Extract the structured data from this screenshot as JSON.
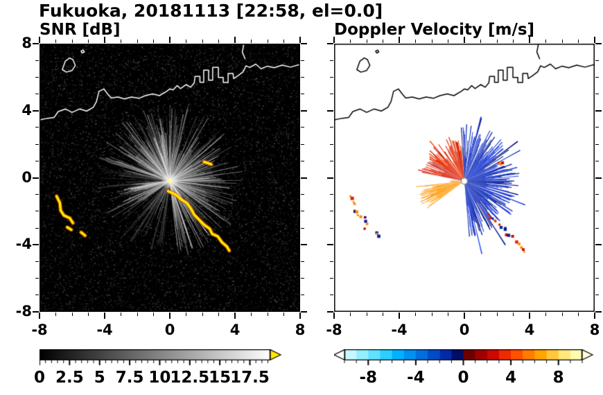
{
  "title": "Fukuoka, 20181113 [22:58, el=0.0]",
  "chart_data": [
    {
      "type": "heatmap",
      "id": "snr",
      "title": "SNR [dB]",
      "units": "dB",
      "xlim": [
        -8,
        8
      ],
      "ylim": [
        -8,
        8
      ],
      "xtick_values": [
        -8,
        -4,
        0,
        4,
        8
      ],
      "xtick_labels": [
        "-8",
        "-4",
        "0",
        "4",
        "8"
      ],
      "ytick_values": [
        -8,
        -4,
        0,
        4,
        8
      ],
      "ytick_labels": [
        "-8",
        "-4",
        "0",
        "4",
        "8"
      ],
      "minor_tick_step": 1,
      "grid": false,
      "background": "#000000",
      "coast_color": "#ffffff",
      "colorbar": {
        "min": 0,
        "max": 19.2,
        "minor_step": 0.5,
        "label_values": [
          0,
          2.5,
          5,
          7.5,
          10,
          12.5,
          15,
          17.5
        ],
        "labels": [
          "0",
          "2.5",
          "5",
          "7.5",
          "10",
          "12.5",
          "15",
          "17.5"
        ],
        "gradient": [
          "#000000",
          "#ffffff"
        ],
        "over_arrow": "#ffe800"
      },
      "render": {
        "center": [
          0,
          -0.2
        ],
        "seed_noise": 101,
        "noise_count": 9000,
        "seed_rays": 77,
        "wedges": [
          {
            "a0": 96,
            "a1": 126,
            "r": 3.0,
            "alpha": 0.33
          },
          {
            "a0": 128,
            "a1": 164,
            "r": 2.6,
            "alpha": 0.26
          },
          {
            "a0": 186,
            "a1": 214,
            "r": 2.9,
            "alpha": 0.3
          },
          {
            "a0": -84,
            "a1": -40,
            "r": 2.7,
            "alpha": 0.22
          },
          {
            "a0": -40,
            "a1": 20,
            "r": 3.3,
            "alpha": 0.24
          },
          {
            "a0": 20,
            "a1": 60,
            "r": 2.8,
            "alpha": 0.22
          },
          {
            "a0": 60,
            "a1": 92,
            "r": 2.3,
            "alpha": 0.18
          }
        ],
        "ray_count": 240,
        "ray_len": [
          0.8,
          4.6
        ],
        "bright_rays": [
          {
            "a0": 95,
            "a1": 170,
            "count": 70,
            "len": [
              1.5,
              4.6
            ]
          },
          {
            "a0": -85,
            "a1": 93,
            "count": 100,
            "len": [
              1.5,
              4.6
            ]
          },
          {
            "a0": 185,
            "a1": 215,
            "count": 28,
            "len": [
              1.5,
              3.2
            ]
          }
        ],
        "glow_radius_px": 13,
        "yellow": "#ffe800",
        "yellow_fringe": "#cc4400",
        "center_dot_color": "#fff8aa",
        "yellow_paths": [
          [
            [
              -6.95,
              -1.1
            ],
            [
              -6.75,
              -1.5
            ],
            [
              -6.7,
              -1.95
            ],
            [
              -6.5,
              -2.25
            ],
            [
              -6.15,
              -2.4
            ],
            [
              -5.95,
              -2.7
            ]
          ],
          [
            [
              -6.3,
              -2.95
            ],
            [
              -6.05,
              -3.1
            ]
          ],
          [
            [
              -5.45,
              -3.25
            ],
            [
              -5.2,
              -3.45
            ]
          ],
          [
            [
              -0.1,
              -0.8
            ],
            [
              0.35,
              -1.0
            ],
            [
              0.7,
              -1.3
            ],
            [
              1.05,
              -1.5
            ],
            [
              1.3,
              -1.85
            ],
            [
              1.5,
              -2.2
            ],
            [
              1.8,
              -2.5
            ],
            [
              2.1,
              -2.8
            ],
            [
              2.45,
              -3.05
            ],
            [
              2.6,
              -3.35
            ],
            [
              2.95,
              -3.5
            ],
            [
              3.2,
              -3.85
            ],
            [
              3.5,
              -4.1
            ],
            [
              3.65,
              -4.35
            ]
          ],
          [
            [
              2.1,
              0.95
            ],
            [
              2.55,
              0.8
            ]
          ]
        ]
      }
    },
    {
      "type": "heatmap",
      "id": "doppler",
      "title": "Doppler Velocity [m/s]",
      "units": "m/s",
      "xlim": [
        -8,
        8
      ],
      "ylim": [
        -8,
        8
      ],
      "xtick_values": [
        -8,
        -4,
        0,
        4,
        8
      ],
      "xtick_labels": [
        "-8",
        "-4",
        "0",
        "4",
        "8"
      ],
      "ytick_values": [
        -8,
        -4,
        0,
        4,
        8
      ],
      "ytick_labels": [
        "-8",
        "-4",
        "0",
        "4",
        "8"
      ],
      "minor_tick_step": 1,
      "grid": false,
      "background": "#ffffff",
      "coast_color": "#000000",
      "colorbar": {
        "min": -10,
        "max": 10,
        "minor_step": 1,
        "label_values": [
          -8,
          -4,
          0,
          4,
          8
        ],
        "labels": [
          "-8",
          "-4",
          "0",
          "4",
          "8"
        ],
        "stops": [
          "#c8f8ff",
          "#94efff",
          "#60e2ff",
          "#2cceff",
          "#00b2ff",
          "#0090f0",
          "#006ede",
          "#004cc6",
          "#002ca8",
          "#000e66",
          "#700000",
          "#a00000",
          "#cc0800",
          "#ee2a00",
          "#ff5000",
          "#ff7c00",
          "#ffa400",
          "#ffc83c",
          "#ffe87c",
          "#fffbb0"
        ],
        "under_arrow": "#ffffff",
        "over_arrow": "#ffffdd"
      },
      "render": {
        "center": [
          0,
          -0.2
        ],
        "seed": 202,
        "sectors": [
          {
            "a0": -85,
            "a1": 93,
            "step": 0.7,
            "len": [
              1.3,
              3.4
            ],
            "gap": 0.1,
            "spike": 0.07,
            "spike_len": 1.0,
            "colors": [
              "#0a1a99",
              "#1133cc",
              "#2244ee",
              "#0022aa",
              "#3355ff",
              "#001177",
              "#0d2bb5",
              "#1b3de0"
            ]
          },
          {
            "a0": 95,
            "a1": 168,
            "step": 0.8,
            "len": [
              1.1,
              2.8
            ],
            "gap": 0.12,
            "spike": 0.05,
            "spike_len": 0.7,
            "colors": [
              "#cc1100",
              "#ee2200",
              "#ff3300",
              "#aa0000",
              "#ff5500",
              "#dd2b00"
            ]
          },
          {
            "a0": 170,
            "a1": 184,
            "step": 1.2,
            "len": [
              0.3,
              1.0
            ],
            "gap": 0.5,
            "spike": 0,
            "spike_len": 0,
            "colors": [
              "#ff7700",
              "#ee4400"
            ]
          },
          {
            "a0": 186,
            "a1": 215,
            "step": 0.7,
            "len": [
              1.7,
              3.0
            ],
            "gap": 0.06,
            "spike": 0.04,
            "spike_len": 0.5,
            "colors": [
              "#ff9900",
              "#ffa41e",
              "#ff8c00",
              "#ffb133",
              "#ff9d11"
            ]
          }
        ],
        "center_circle": {
          "fill": "#ffffff",
          "stroke": "#888888",
          "radius_px": 4.5
        },
        "speck_colors": [
          "#001177",
          "#cc1100",
          "#ff8800",
          "#0a1a99",
          "#dd2200",
          "#002299"
        ],
        "speck_paths": [
          [
            [
              -6.95,
              -1.1
            ],
            [
              -6.75,
              -1.5
            ],
            [
              -6.7,
              -1.95
            ],
            [
              -6.5,
              -2.25
            ],
            [
              -6.15,
              -2.4
            ],
            [
              -5.95,
              -2.7
            ]
          ],
          [
            [
              -6.3,
              -2.95
            ],
            [
              -6.05,
              -3.1
            ]
          ],
          [
            [
              -5.45,
              -3.25
            ],
            [
              -5.2,
              -3.45
            ]
          ],
          [
            [
              1.5,
              -2.2
            ],
            [
              1.8,
              -2.5
            ],
            [
              2.1,
              -2.8
            ],
            [
              2.45,
              -3.05
            ],
            [
              2.6,
              -3.35
            ],
            [
              2.95,
              -3.5
            ],
            [
              3.2,
              -3.85
            ],
            [
              3.5,
              -4.1
            ],
            [
              3.65,
              -4.35
            ]
          ],
          [
            [
              2.1,
              0.95
            ],
            [
              2.55,
              0.8
            ]
          ]
        ]
      }
    }
  ],
  "coastline": {
    "lines": [
      [
        [
          -8,
          3.45
        ],
        [
          -7.5,
          3.55
        ],
        [
          -7.1,
          3.6
        ],
        [
          -6.85,
          3.95
        ],
        [
          -6.4,
          4.1
        ],
        [
          -6.0,
          3.9
        ],
        [
          -5.55,
          4.1
        ],
        [
          -5.1,
          3.98
        ],
        [
          -4.7,
          4.2
        ],
        [
          -4.5,
          4.55
        ],
        [
          -4.35,
          5.15
        ],
        [
          -4.05,
          5.3
        ],
        [
          -3.82,
          5.0
        ],
        [
          -3.6,
          4.75
        ],
        [
          -3.2,
          4.82
        ],
        [
          -2.78,
          4.7
        ],
        [
          -2.35,
          4.82
        ],
        [
          -1.9,
          4.74
        ],
        [
          -1.5,
          4.9
        ],
        [
          -1.05,
          5.0
        ],
        [
          -0.64,
          4.9
        ],
        [
          -0.2,
          5.15
        ],
        [
          0.0,
          5.3
        ],
        [
          0.2,
          5.24
        ],
        [
          0.45,
          5.5
        ],
        [
          0.65,
          5.32
        ],
        [
          1.0,
          5.56
        ],
        [
          1.28,
          5.4
        ],
        [
          1.5,
          5.66
        ],
        [
          1.55,
          6.05
        ],
        [
          1.85,
          6.05
        ],
        [
          1.85,
          5.7
        ],
        [
          2.08,
          5.7
        ],
        [
          2.08,
          6.42
        ],
        [
          2.38,
          6.42
        ],
        [
          2.38,
          5.82
        ],
        [
          2.63,
          5.82
        ],
        [
          2.63,
          6.58
        ],
        [
          2.98,
          6.58
        ],
        [
          2.98,
          5.98
        ],
        [
          3.28,
          5.98
        ],
        [
          3.28,
          5.68
        ],
        [
          3.58,
          5.68
        ],
        [
          3.58,
          6.22
        ],
        [
          3.88,
          6.22
        ],
        [
          3.92,
          5.92
        ],
        [
          4.18,
          6.08
        ],
        [
          4.5,
          6.32
        ],
        [
          4.68,
          6.68
        ],
        [
          4.9,
          6.58
        ],
        [
          5.28,
          6.78
        ],
        [
          5.6,
          6.5
        ],
        [
          6.0,
          6.66
        ],
        [
          6.4,
          6.56
        ],
        [
          6.9,
          6.72
        ],
        [
          7.4,
          6.6
        ],
        [
          8,
          6.76
        ]
      ],
      [
        [
          -6.6,
          6.45
        ],
        [
          -6.42,
          6.95
        ],
        [
          -6.15,
          7.15
        ],
        [
          -5.95,
          7.05
        ],
        [
          -5.8,
          6.7
        ],
        [
          -6.0,
          6.4
        ],
        [
          -6.35,
          6.3
        ],
        [
          -6.6,
          6.45
        ]
      ],
      [
        [
          -5.45,
          7.55
        ],
        [
          -5.32,
          7.62
        ],
        [
          -5.25,
          7.5
        ],
        [
          -5.38,
          7.44
        ],
        [
          -5.45,
          7.55
        ]
      ],
      [
        [
          4.55,
          8
        ],
        [
          4.45,
          7.5
        ],
        [
          4.62,
          7.1
        ]
      ]
    ]
  }
}
